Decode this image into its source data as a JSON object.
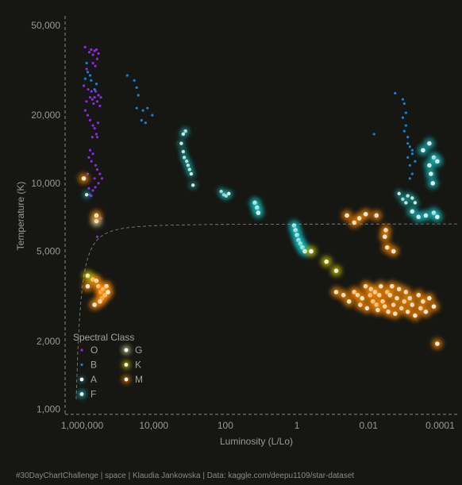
{
  "chart_data": {
    "type": "scatter",
    "title": "",
    "xlabel": "Luminosity (L/Lo)",
    "ylabel": "Temperature (K)",
    "x_scale": "log",
    "x_reversed": true,
    "xlim": [
      3000000,
      3e-05
    ],
    "y_scale": "log",
    "ylim": [
      950,
      55000
    ],
    "x_ticks": [
      1000000,
      10000,
      100,
      1,
      0.01,
      0.0001
    ],
    "x_tick_labels": [
      "1,000,000",
      "10,000",
      "100",
      "1",
      "0.01",
      "0.0001"
    ],
    "y_ticks": [
      50000,
      20000,
      10000,
      5000,
      2000,
      1000
    ],
    "y_tick_labels": [
      "50,000",
      "20,000",
      "10,000",
      "5,000",
      "2,000",
      "1,000"
    ],
    "grid": false,
    "reference_curve_style": "dashed",
    "legend": {
      "title": "Spectral Class",
      "placement": "bottom-left",
      "columns": [
        [
          "O",
          "B",
          "A",
          "F"
        ],
        [
          "G",
          "K",
          "M"
        ]
      ]
    },
    "series": [
      {
        "name": "O",
        "color": "#8a2be2",
        "size": "small",
        "glow": false,
        "points": [
          [
            630000,
            38000
          ],
          [
            560000,
            39000
          ],
          [
            500000,
            37000
          ],
          [
            450000,
            38500
          ],
          [
            400000,
            39000
          ],
          [
            350000,
            37500
          ],
          [
            380000,
            35500
          ],
          [
            500000,
            34000
          ],
          [
            430000,
            33000
          ],
          [
            830000,
            40000
          ],
          [
            750000,
            32000
          ],
          [
            900000,
            27000
          ],
          [
            680000,
            26000
          ],
          [
            600000,
            24000
          ],
          [
            550000,
            25500
          ],
          [
            520000,
            23500
          ],
          [
            480000,
            22500
          ],
          [
            450000,
            24000
          ],
          [
            420000,
            25500
          ],
          [
            380000,
            23000
          ],
          [
            350000,
            24500
          ],
          [
            320000,
            22000
          ],
          [
            300000,
            24000
          ],
          [
            760000,
            23000
          ],
          [
            820000,
            21000
          ],
          [
            700000,
            20000
          ],
          [
            600000,
            19000
          ],
          [
            500000,
            18000
          ],
          [
            450000,
            17500
          ],
          [
            400000,
            16500
          ],
          [
            380000,
            16000
          ],
          [
            360000,
            18500
          ],
          [
            520000,
            16000
          ],
          [
            600000,
            14000
          ],
          [
            650000,
            13000
          ],
          [
            550000,
            12500
          ],
          [
            500000,
            13500
          ],
          [
            420000,
            12000
          ],
          [
            380000,
            11500
          ],
          [
            320000,
            11000
          ],
          [
            280000,
            10500
          ],
          [
            350000,
            10000
          ],
          [
            450000,
            10500
          ],
          [
            700000,
            11000
          ],
          [
            650000,
            9500
          ],
          [
            620000,
            8900
          ],
          [
            560000,
            8800
          ],
          [
            500000,
            9300
          ],
          [
            430000,
            9600
          ],
          [
            380000,
            5800
          ],
          [
            300000,
            7000
          ]
        ]
      },
      {
        "name": "B",
        "color": "#1e7fd0",
        "size": "small",
        "glow": false,
        "points": [
          [
            750000,
            34000
          ],
          [
            820000,
            29000
          ],
          [
            700000,
            31000
          ],
          [
            600000,
            30000
          ],
          [
            560000,
            28500
          ],
          [
            400000,
            27500
          ],
          [
            450000,
            26000
          ],
          [
            55000,
            30000
          ],
          [
            35000,
            28500
          ],
          [
            30000,
            26500
          ],
          [
            27000,
            24500
          ],
          [
            30000,
            21500
          ],
          [
            20000,
            21000
          ],
          [
            15000,
            21500
          ],
          [
            22000,
            19000
          ],
          [
            17000,
            18500
          ],
          [
            11000,
            20000
          ],
          [
            0.0018,
            25000
          ],
          [
            0.007,
            16500
          ],
          [
            0.0011,
            23500
          ],
          [
            0.001,
            22500
          ],
          [
            0.0009,
            20500
          ],
          [
            0.0011,
            19500
          ],
          [
            0.0009,
            18000
          ],
          [
            0.001,
            17000
          ],
          [
            0.0008,
            16000
          ],
          [
            0.0007,
            14500
          ],
          [
            0.0006,
            13500
          ],
          [
            0.0008,
            13000
          ],
          [
            0.0007,
            12000
          ],
          [
            0.0006,
            11000
          ],
          [
            0.0005,
            12500
          ],
          [
            0.0006,
            14000
          ],
          [
            0.0007,
            10500
          ],
          [
            0.0008,
            15000
          ]
        ]
      },
      {
        "name": "A",
        "color": "#1ab0a8",
        "size": "medium",
        "glow": true,
        "points": [
          [
            1300,
            17000
          ],
          [
            1500,
            16500
          ],
          [
            1700,
            15000
          ],
          [
            1500,
            13800
          ],
          [
            1400,
            13000
          ],
          [
            1200,
            12500
          ],
          [
            1100,
            12000
          ],
          [
            1000,
            11500
          ],
          [
            900,
            11000
          ],
          [
            800,
            9800
          ],
          [
            130,
            9200
          ],
          [
            110,
            8900
          ],
          [
            95,
            8800
          ],
          [
            80,
            9000
          ],
          [
            750000,
            8900
          ],
          [
            0.0014,
            9000
          ],
          [
            0.0011,
            8500
          ],
          [
            0.0009,
            8200
          ],
          [
            0.0008,
            8800
          ],
          [
            0.0006,
            8600
          ],
          [
            0.0005,
            8200
          ]
        ]
      },
      {
        "name": "F",
        "color": "#12c8c8",
        "size": "large",
        "glow": true,
        "points": [
          [
            15,
            8200
          ],
          [
            13,
            7800
          ],
          [
            12,
            7400
          ],
          [
            1.2,
            6500
          ],
          [
            1.1,
            6200
          ],
          [
            1.0,
            5900
          ],
          [
            0.9,
            5600
          ],
          [
            0.8,
            5400
          ],
          [
            0.7,
            5200
          ],
          [
            0.6,
            5000
          ],
          [
            0.0003,
            14000
          ],
          [
            0.0002,
            15000
          ],
          [
            0.00015,
            13000
          ],
          [
            0.00012,
            12500
          ],
          [
            0.0002,
            12000
          ],
          [
            0.00018,
            11000
          ],
          [
            0.00016,
            10000
          ],
          [
            0.0006,
            7500
          ],
          [
            0.0004,
            7100
          ],
          [
            0.00025,
            7200
          ],
          [
            0.00015,
            7400
          ],
          [
            0.00012,
            7100
          ]
        ]
      },
      {
        "name": "G",
        "color": "#f0f0a0",
        "size": "large",
        "glow": true,
        "points": [
          [
            400000,
            6800
          ]
        ]
      },
      {
        "name": "K",
        "color": "#d8d000",
        "size": "large",
        "glow": true,
        "points": [
          [
            700000,
            3900
          ],
          [
            500000,
            3750
          ],
          [
            0.4,
            5000
          ],
          [
            0.15,
            4500
          ],
          [
            0.08,
            4100
          ]
        ]
      },
      {
        "name": "M",
        "color": "#ff8c00",
        "size": "large",
        "glow": true,
        "points": [
          [
            900000,
            10500
          ],
          [
            400000,
            7200
          ],
          [
            400000,
            3700
          ],
          [
            350000,
            3500
          ],
          [
            300000,
            3300
          ],
          [
            280000,
            3100
          ],
          [
            260000,
            3400
          ],
          [
            230000,
            3200
          ],
          [
            210000,
            3500
          ],
          [
            190000,
            3300
          ],
          [
            320000,
            3000
          ],
          [
            450000,
            2900
          ],
          [
            700000,
            3500
          ],
          [
            0.04,
            7200
          ],
          [
            0.025,
            6700
          ],
          [
            0.018,
            7000
          ],
          [
            0.012,
            7300
          ],
          [
            0.006,
            7200
          ],
          [
            0.0033,
            6200
          ],
          [
            0.0035,
            5800
          ],
          [
            0.003,
            5200
          ],
          [
            0.002,
            5000
          ],
          [
            0.08,
            3300
          ],
          [
            0.05,
            3200
          ],
          [
            0.035,
            3000
          ],
          [
            0.025,
            3300
          ],
          [
            0.02,
            3200
          ],
          [
            0.017,
            2900
          ],
          [
            0.015,
            3100
          ],
          [
            0.012,
            3500
          ],
          [
            0.011,
            2800
          ],
          [
            0.009,
            3200
          ],
          [
            0.0085,
            3400
          ],
          [
            0.0075,
            3000
          ],
          [
            0.0065,
            3300
          ],
          [
            0.006,
            2900
          ],
          [
            0.0055,
            2750
          ],
          [
            0.005,
            3200
          ],
          [
            0.0045,
            3500
          ],
          [
            0.004,
            3000
          ],
          [
            0.0035,
            2850
          ],
          [
            0.003,
            3300
          ],
          [
            0.0028,
            2700
          ],
          [
            0.0025,
            3200
          ],
          [
            0.0022,
            3500
          ],
          [
            0.002,
            2900
          ],
          [
            0.0018,
            2650
          ],
          [
            0.0016,
            3100
          ],
          [
            0.0014,
            3400
          ],
          [
            0.0012,
            2800
          ],
          [
            0.001,
            3000
          ],
          [
            0.0009,
            3300
          ],
          [
            0.0008,
            2700
          ],
          [
            0.0007,
            3100
          ],
          [
            0.0006,
            2900
          ],
          [
            0.0005,
            2600
          ],
          [
            0.0004,
            3200
          ],
          [
            0.00035,
            2800
          ],
          [
            0.0003,
            3000
          ],
          [
            0.00025,
            2700
          ],
          [
            0.0002,
            3100
          ],
          [
            0.00015,
            2850
          ],
          [
            0.00012,
            1950
          ]
        ]
      }
    ]
  },
  "caption": "#30DayChartChallenge  |  space  |  Klaudia Jankowska  |  Data: kaggle.com/deepu1109/star-dataset"
}
